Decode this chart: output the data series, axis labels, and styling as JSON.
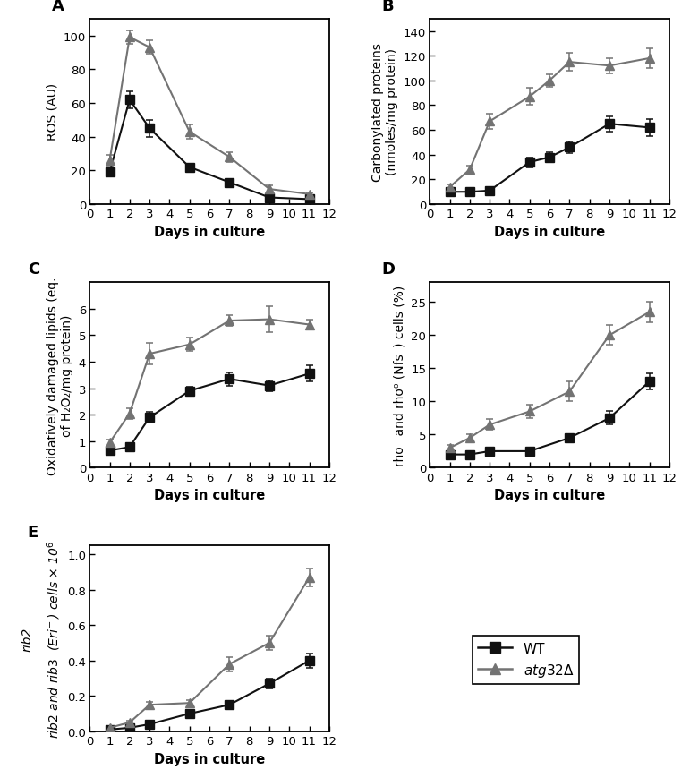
{
  "days_A": [
    1,
    2,
    3,
    5,
    7,
    9,
    11
  ],
  "WT_A": [
    19,
    62,
    45,
    22,
    13,
    4,
    3
  ],
  "WT_A_err": [
    2,
    5,
    5,
    2,
    2,
    1,
    1
  ],
  "atg32_A": [
    26,
    99,
    93,
    43,
    28,
    9,
    6
  ],
  "atg32_A_err": [
    3,
    4,
    4,
    4,
    3,
    2,
    1
  ],
  "ylabel_A": "ROS (AU)",
  "ylim_A": [
    0,
    110
  ],
  "yticks_A": [
    0,
    20,
    40,
    60,
    80,
    100
  ],
  "days_B": [
    1,
    2,
    3,
    5,
    6,
    7,
    9,
    11
  ],
  "WT_B": [
    10,
    10,
    11,
    34,
    38,
    46,
    65,
    62
  ],
  "WT_B_err": [
    2,
    2,
    2,
    4,
    4,
    5,
    6,
    7
  ],
  "atg32_B": [
    14,
    28,
    67,
    87,
    100,
    115,
    112,
    118
  ],
  "atg32_B_err": [
    2,
    3,
    6,
    7,
    5,
    7,
    6,
    8
  ],
  "ylabel_B": "Carbonylated proteins\n(nmoles/mg protein)",
  "ylim_B": [
    0,
    150
  ],
  "yticks_B": [
    0,
    20,
    40,
    60,
    80,
    100,
    120,
    140
  ],
  "days_C": [
    1,
    2,
    3,
    5,
    7,
    9,
    11
  ],
  "WT_C": [
    0.65,
    0.78,
    1.9,
    2.9,
    3.35,
    3.1,
    3.55
  ],
  "WT_C_err": [
    0.12,
    0.12,
    0.2,
    0.15,
    0.25,
    0.2,
    0.3
  ],
  "atg32_C": [
    0.95,
    2.05,
    4.3,
    4.65,
    5.55,
    5.6,
    5.4
  ],
  "atg32_C_err": [
    0.12,
    0.2,
    0.4,
    0.25,
    0.2,
    0.5,
    0.2
  ],
  "ylabel_C": "Oxidatively damaged lipids (eq.\nof H₂O₂/mg protein)",
  "ylim_C": [
    0,
    7
  ],
  "yticks_C": [
    0,
    1,
    2,
    3,
    4,
    5,
    6
  ],
  "days_D": [
    1,
    2,
    3,
    5,
    7,
    9,
    11
  ],
  "WT_D": [
    2.0,
    2.0,
    2.5,
    2.5,
    4.5,
    7.5,
    13.0
  ],
  "WT_D_err": [
    0.3,
    0.3,
    0.4,
    0.4,
    0.5,
    1.0,
    1.2
  ],
  "atg32_D": [
    3.0,
    4.5,
    6.5,
    8.5,
    11.5,
    20.0,
    23.5
  ],
  "atg32_D_err": [
    0.4,
    0.5,
    0.8,
    1.0,
    1.5,
    1.5,
    1.5
  ],
  "ylabel_D": "rho⁻ and rho⁰ (Nfs⁻) cells (%)",
  "ylim_D": [
    0,
    28
  ],
  "yticks_D": [
    0,
    5,
    10,
    15,
    20,
    25
  ],
  "days_E": [
    1,
    2,
    3,
    5,
    7,
    9,
    11
  ],
  "WT_E": [
    0.01,
    0.02,
    0.04,
    0.1,
    0.15,
    0.27,
    0.4
  ],
  "WT_E_err": [
    0.003,
    0.005,
    0.007,
    0.012,
    0.018,
    0.03,
    0.04
  ],
  "atg32_E": [
    0.02,
    0.05,
    0.15,
    0.16,
    0.38,
    0.5,
    0.87
  ],
  "atg32_E_err": [
    0.004,
    0.008,
    0.015,
    0.015,
    0.04,
    0.04,
    0.05
  ],
  "ylabel_E": "rib2 and rib3  (Eri⁻) cells × 10⁶",
  "ylim_E": [
    0,
    1.05
  ],
  "yticks_E": [
    0,
    0.2,
    0.4,
    0.6,
    0.8,
    1.0
  ],
  "xlabel": "Days in culture",
  "xticks": [
    0,
    1,
    2,
    3,
    4,
    5,
    6,
    7,
    8,
    9,
    10,
    11,
    12
  ],
  "color_WT": "#111111",
  "color_atg32": "#737373",
  "legend_WT": "WT",
  "legend_atg32": "atg32Δ",
  "panel_labels": [
    "A",
    "B",
    "C",
    "D",
    "E"
  ],
  "background_color": "#ffffff"
}
